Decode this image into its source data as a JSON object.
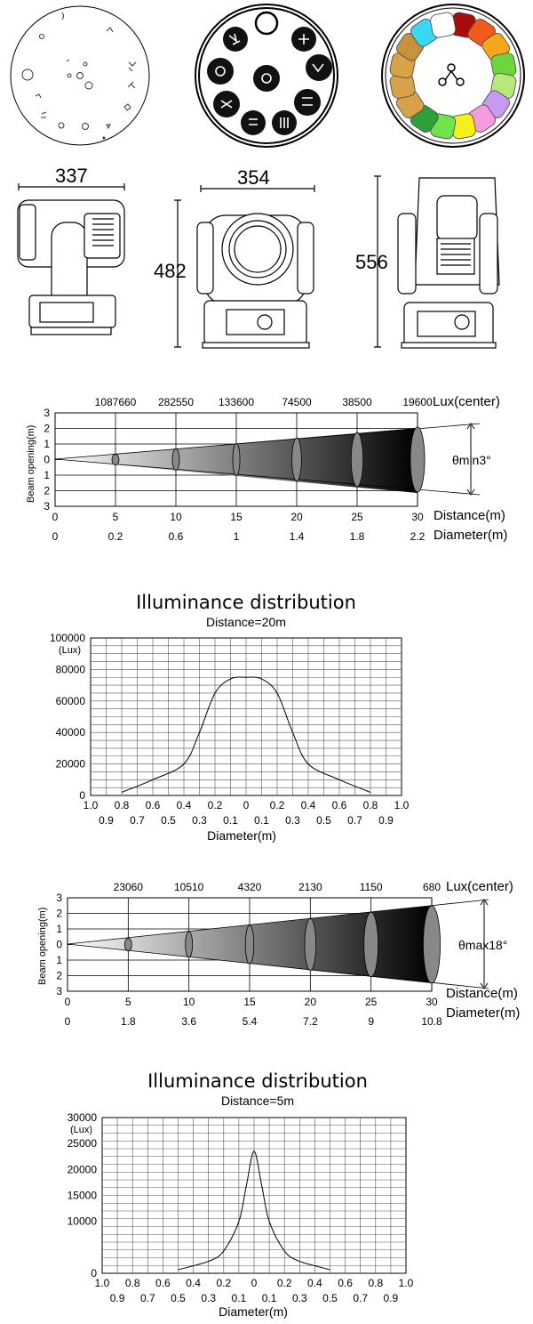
{
  "dimensions": {
    "side_width": "337",
    "front_width": "354",
    "front_height": "482",
    "back_height": "556"
  },
  "color_wheel": [
    "#a80d0d",
    "#f25a1b",
    "#f5a71b",
    "#6cd63a",
    "#b8e87a",
    "#c59bf0",
    "#f59be0",
    "#f5f01b",
    "#6ee34a",
    "#2ea03a",
    "#d6a24a",
    "#d6a24a",
    "#d6a24a",
    "#c8923c",
    "#3ad8f0",
    "#ffffff"
  ],
  "beam_min": {
    "lux": [
      "1087660",
      "282550",
      "133600",
      "74500",
      "38500",
      "19600"
    ],
    "lux_label": "Lux(center)",
    "ylabel": "Beam opening(m)",
    "yticks": [
      "3",
      "2",
      "1",
      "0",
      "1",
      "2",
      "3"
    ],
    "distances": [
      "0",
      "5",
      "10",
      "15",
      "20",
      "25",
      "30"
    ],
    "distance_label": "Distance(m)",
    "diameters": [
      "0",
      "0.2",
      "0.6",
      "1",
      "1.4",
      "1.8",
      "2.2"
    ],
    "diameter_label": "Diameter(m)",
    "angle": "θmin3°"
  },
  "illum_20": {
    "title": "Illuminance distribution",
    "subtitle": "Distance=20m",
    "yticks": [
      "100000",
      "80000",
      "60000",
      "40000",
      "20000",
      "0"
    ],
    "yunit": "(Lux)",
    "xticks_top": [
      "1.0",
      "0.8",
      "0.6",
      "0.4",
      "0.2",
      "0",
      "0.2",
      "0.4",
      "0.6",
      "0.8",
      "1.0"
    ],
    "xticks_bottom": [
      "0.9",
      "0.7",
      "0.5",
      "0.3",
      "0.1",
      "0.1",
      "0.3",
      "0.5",
      "0.7",
      "0.9"
    ],
    "xlabel": "Diameter(m)"
  },
  "beam_max": {
    "lux": [
      "23060",
      "10510",
      "4320",
      "2130",
      "1150",
      "680"
    ],
    "lux_label": "Lux(center)",
    "ylabel": "Beam opening(m)",
    "yticks": [
      "3",
      "2",
      "1",
      "0",
      "1",
      "2",
      "3"
    ],
    "distances": [
      "0",
      "5",
      "10",
      "15",
      "20",
      "25",
      "30"
    ],
    "distance_label": "Distance(m)",
    "diameters": [
      "0",
      "1.8",
      "3.6",
      "5.4",
      "7.2",
      "9",
      "10.8"
    ],
    "diameter_label": "Diameter(m)",
    "angle": "θmax18°"
  },
  "illum_5": {
    "title": "Illuminance distribution",
    "subtitle": "Distance=5m",
    "yticks": [
      "30000",
      "25000",
      "20000",
      "15000",
      "10000",
      "0"
    ],
    "yunit": "(Lux)",
    "xticks_top": [
      "1.0",
      "0.8",
      "0.6",
      "0.4",
      "0.2",
      "0",
      "0.2",
      "0.4",
      "0.6",
      "0.8",
      "1.0"
    ],
    "xticks_bottom": [
      "0.9",
      "0.7",
      "0.5",
      "0.3",
      "0.1",
      "0.1",
      "0.3",
      "0.5",
      "0.7",
      "0.9"
    ],
    "xlabel": "Diameter(m)"
  },
  "chart_data": [
    {
      "type": "line",
      "title": "Illuminance distribution",
      "subtitle": "Distance=20m",
      "xlabel": "Diameter(m)",
      "ylabel": "(Lux)",
      "ylim": [
        0,
        100000
      ],
      "xlim": [
        -1.0,
        1.0
      ],
      "x": [
        -0.8,
        -0.6,
        -0.4,
        -0.3,
        -0.2,
        -0.1,
        0,
        0.1,
        0.2,
        0.3,
        0.4,
        0.6,
        0.8
      ],
      "values": [
        2000,
        10000,
        20000,
        40000,
        65000,
        74000,
        75000,
        74000,
        65000,
        40000,
        20000,
        10000,
        2000
      ]
    },
    {
      "type": "line",
      "title": "Illuminance distribution",
      "subtitle": "Distance=5m",
      "xlabel": "Diameter(m)",
      "ylabel": "(Lux)",
      "ylim": [
        0,
        30000
      ],
      "xlim": [
        -1.0,
        1.0
      ],
      "x": [
        -0.5,
        -0.3,
        -0.2,
        -0.1,
        -0.05,
        0,
        0.05,
        0.1,
        0.2,
        0.3,
        0.5
      ],
      "values": [
        700,
        2300,
        4300,
        10000,
        17000,
        23500,
        17000,
        10000,
        4300,
        2300,
        700
      ]
    },
    {
      "type": "table",
      "title": "",
      "x": [
        0,
        5,
        10,
        15,
        20,
        25,
        30
      ],
      "series": [
        {
          "name": "Lux(center)",
          "values": [
            null,
            1087660,
            282550,
            133600,
            74500,
            38500,
            19600
          ]
        },
        {
          "name": "Diameter(m)",
          "values": [
            0,
            0.2,
            0.6,
            1,
            1.4,
            1.8,
            2.2
          ]
        }
      ]
    },
    {
      "type": "table",
      "title": "",
      "x": [
        0,
        5,
        10,
        15,
        20,
        25,
        30
      ],
      "series": [
        {
          "name": "Lux(center)",
          "values": [
            null,
            23060,
            10510,
            4320,
            2130,
            1150,
            680
          ]
        },
        {
          "name": "Diameter(m)",
          "values": [
            0,
            1.8,
            3.6,
            5.4,
            7.2,
            9,
            10.8
          ]
        }
      ]
    }
  ]
}
